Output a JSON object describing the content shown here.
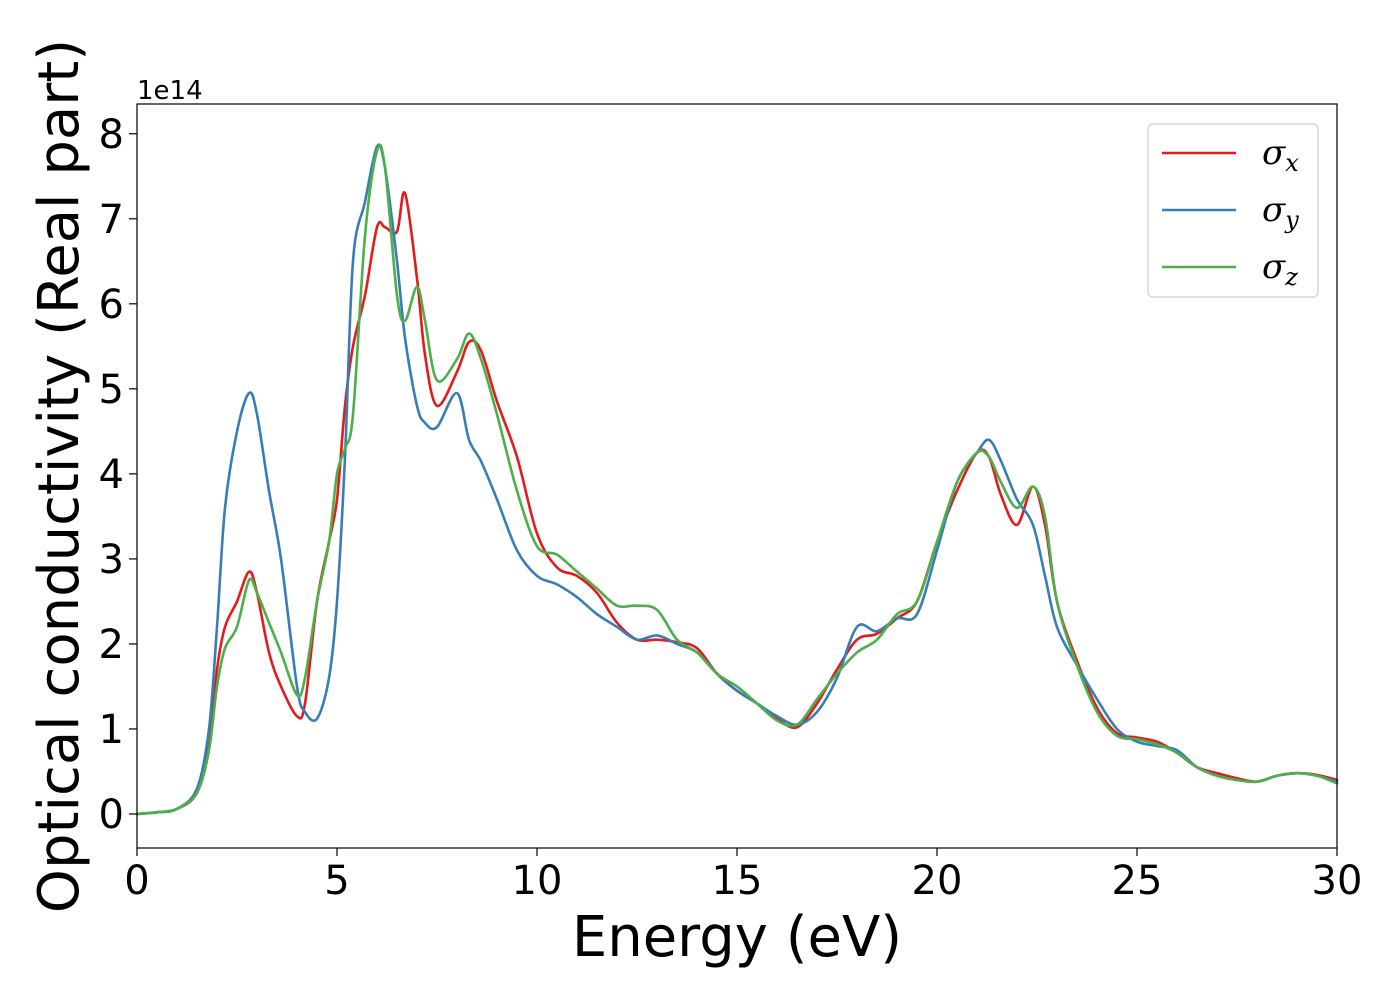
{
  "chart_data": {
    "type": "line",
    "xlabel": "Energy (eV)",
    "ylabel": "Optical conductivity (Real part)",
    "y_offset_label": "1e14",
    "xlim": [
      0,
      30
    ],
    "ylim": [
      -0.4,
      8.35
    ],
    "x_ticks": [
      0,
      5,
      10,
      15,
      20,
      25,
      30
    ],
    "y_ticks": [
      0,
      1,
      2,
      3,
      4,
      5,
      6,
      7,
      8
    ],
    "grid": false,
    "legend_position": "top-right",
    "x": [
      0,
      0.5,
      1,
      1.5,
      1.8,
      2.0,
      2.2,
      2.5,
      2.8,
      3.0,
      3.3,
      3.6,
      4.0,
      4.2,
      4.5,
      4.8,
      5.0,
      5.2,
      5.4,
      5.7,
      6.0,
      6.2,
      6.5,
      6.7,
      7.0,
      7.2,
      7.5,
      8.0,
      8.3,
      8.6,
      9.0,
      9.5,
      10.0,
      10.5,
      11.0,
      11.5,
      12.0,
      12.5,
      13.0,
      13.5,
      14.0,
      14.5,
      15.0,
      15.5,
      16.0,
      16.5,
      17.0,
      17.5,
      18.0,
      18.5,
      19.0,
      19.5,
      20.0,
      20.5,
      21.0,
      21.3,
      21.6,
      22.0,
      22.4,
      22.7,
      23.0,
      23.5,
      24.0,
      24.5,
      25.0,
      25.5,
      26.0,
      26.5,
      27.0,
      27.5,
      28.0,
      28.5,
      29.0,
      29.5,
      30.0
    ],
    "series": [
      {
        "name": "σ",
        "subscript": "x",
        "color": "#e41a1c",
        "values": [
          0,
          0.02,
          0.06,
          0.25,
          0.8,
          1.7,
          2.2,
          2.5,
          2.85,
          2.6,
          1.9,
          1.5,
          1.15,
          1.3,
          2.5,
          3.2,
          3.7,
          4.8,
          5.5,
          6.1,
          6.9,
          6.9,
          6.85,
          7.3,
          6.3,
          5.4,
          4.8,
          5.2,
          5.55,
          5.45,
          4.85,
          4.2,
          3.3,
          2.9,
          2.8,
          2.6,
          2.25,
          2.05,
          2.05,
          2.02,
          1.95,
          1.65,
          1.45,
          1.3,
          1.12,
          1.02,
          1.3,
          1.7,
          2.05,
          2.12,
          2.3,
          2.5,
          3.2,
          3.8,
          4.25,
          4.2,
          3.75,
          3.4,
          3.85,
          3.4,
          2.5,
          1.8,
          1.25,
          0.95,
          0.9,
          0.85,
          0.72,
          0.55,
          0.48,
          0.42,
          0.38,
          0.45,
          0.48,
          0.46,
          0.4
        ]
      },
      {
        "name": "σ",
        "subscript": "y",
        "color": "#377eb8",
        "values": [
          0,
          0.02,
          0.06,
          0.3,
          1.0,
          2.2,
          3.6,
          4.5,
          4.95,
          4.7,
          3.8,
          3.0,
          1.5,
          1.2,
          1.12,
          1.6,
          2.5,
          4.2,
          6.5,
          7.2,
          7.85,
          7.6,
          6.5,
          5.6,
          4.8,
          4.6,
          4.55,
          4.95,
          4.4,
          4.15,
          3.7,
          3.1,
          2.8,
          2.7,
          2.55,
          2.35,
          2.2,
          2.05,
          2.1,
          2.0,
          1.9,
          1.65,
          1.45,
          1.3,
          1.15,
          1.05,
          1.2,
          1.6,
          2.2,
          2.15,
          2.3,
          2.35,
          3.1,
          3.9,
          4.25,
          4.4,
          4.15,
          3.7,
          3.4,
          2.8,
          2.2,
          1.75,
          1.35,
          1.0,
          0.85,
          0.8,
          0.75,
          0.55,
          0.45,
          0.4,
          0.38,
          0.45,
          0.48,
          0.45,
          0.38
        ]
      },
      {
        "name": "σ",
        "subscript": "z",
        "color": "#4daf4a",
        "values": [
          0,
          0.02,
          0.06,
          0.25,
          0.75,
          1.5,
          1.95,
          2.2,
          2.75,
          2.6,
          2.25,
          1.9,
          1.4,
          1.6,
          2.5,
          3.2,
          4.0,
          4.3,
          4.7,
          6.8,
          7.8,
          7.6,
          6.1,
          5.8,
          6.2,
          5.8,
          5.1,
          5.35,
          5.65,
          5.35,
          4.7,
          3.8,
          3.15,
          3.05,
          2.85,
          2.65,
          2.45,
          2.45,
          2.4,
          2.05,
          1.9,
          1.65,
          1.5,
          1.3,
          1.1,
          1.05,
          1.35,
          1.65,
          1.9,
          2.05,
          2.35,
          2.5,
          3.2,
          3.9,
          4.25,
          4.2,
          3.9,
          3.6,
          3.85,
          3.5,
          2.5,
          1.75,
          1.2,
          0.92,
          0.88,
          0.82,
          0.72,
          0.55,
          0.45,
          0.4,
          0.38,
          0.45,
          0.48,
          0.45,
          0.36
        ]
      }
    ]
  }
}
